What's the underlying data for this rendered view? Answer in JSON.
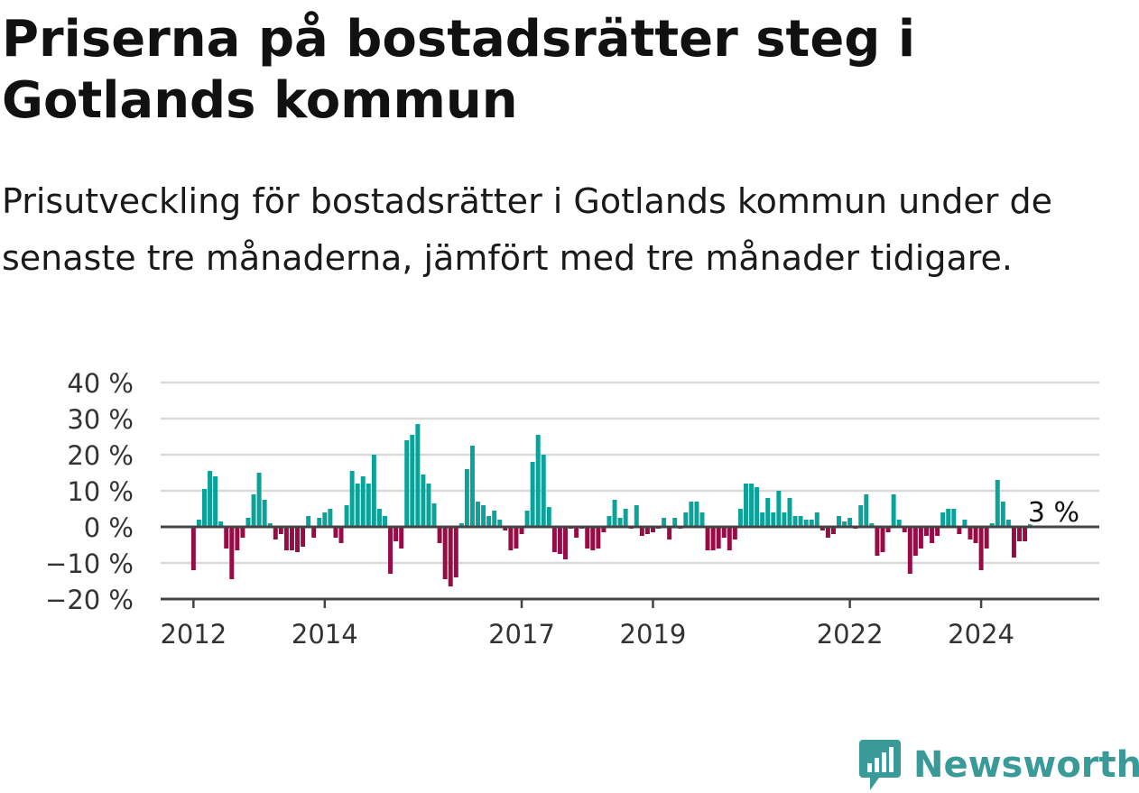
{
  "title": "Priserna på bostadsrätter steg i Gotlands kommun",
  "subtitle": "Prisutveckling för bostadsrätter i Gotlands kommun under de senaste tre månaderna, jämfört med tre månader tidigare.",
  "brand": {
    "name": "Newsworthy",
    "icon": "newsworthy-logo-icon",
    "color": "#3a9a98"
  },
  "colors": {
    "positive": "#0ba29a",
    "negative": "#970c45",
    "grid": "#d9d9d9",
    "axis": "#444444"
  },
  "chart_data": {
    "type": "bar",
    "title": "",
    "xlabel": "",
    "ylabel": "",
    "ylim": [
      -20,
      40
    ],
    "yticks": [
      40,
      30,
      20,
      10,
      0,
      -10,
      -20
    ],
    "ytick_labels": [
      "40 %",
      "30 %",
      "20 %",
      "10 %",
      "0 %",
      "−10 %",
      "−20 %"
    ],
    "xlim": [
      2011.5,
      2025.8
    ],
    "xticks": [
      2012,
      2014,
      2017,
      2019,
      2022,
      2024
    ],
    "xtick_labels": [
      "2012",
      "2014",
      "2017",
      "2019",
      "2022",
      "2024"
    ],
    "grid": true,
    "start": "2012-01",
    "values": [
      -12,
      2,
      10.5,
      15.5,
      14,
      1.5,
      -6,
      -14.5,
      -6.5,
      -3,
      2.5,
      9,
      15,
      7.5,
      1,
      -3.5,
      -2,
      -6.5,
      -6.5,
      -7,
      -5.5,
      3,
      -3,
      2.5,
      4,
      5,
      -3,
      -4.5,
      6,
      15.5,
      12,
      14,
      12,
      20,
      5,
      3,
      -13,
      -4,
      -6,
      24,
      25.5,
      28.5,
      14.5,
      12,
      6.5,
      -4.5,
      -14.5,
      -16.5,
      -14,
      1,
      16,
      22.5,
      7,
      6,
      3,
      4.5,
      2,
      -1,
      -6.5,
      -6,
      -2,
      4.5,
      18,
      25.5,
      20,
      5.5,
      -7,
      -7.5,
      -9,
      -0.5,
      -3,
      -0.5,
      -6,
      -6.5,
      -6,
      -1.5,
      3,
      7.5,
      2.5,
      5,
      -0.5,
      6,
      -2.5,
      -2,
      -1.5,
      -0.5,
      2.5,
      -3.5,
      2.5,
      -0.5,
      4,
      7,
      7,
      4,
      -6.5,
      -6.5,
      -6,
      -3,
      -6.5,
      -3.5,
      5,
      12,
      12,
      11,
      4,
      8,
      4,
      10,
      4,
      8,
      3,
      3,
      2,
      2,
      4,
      -1,
      -3,
      -2,
      3,
      1.5,
      2.5,
      -0.5,
      6,
      9,
      1,
      -8,
      -7,
      -1.5,
      9,
      2,
      -1.5,
      -13,
      -8,
      -6,
      -2.5,
      -4.5,
      -2.5,
      4,
      5,
      5,
      -2,
      2,
      -3.5,
      -4.5,
      -12,
      -6,
      1,
      13,
      7,
      2,
      -8.5,
      -4,
      -4,
      3
    ],
    "annotations": [
      {
        "label": "3 %",
        "value": 3
      }
    ]
  }
}
